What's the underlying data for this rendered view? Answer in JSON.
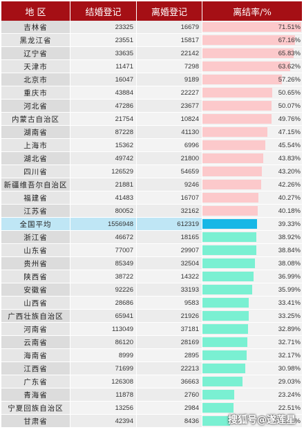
{
  "headers": {
    "region": "地  区",
    "marriage": "结婚登记",
    "divorce": "离婚登记",
    "ratio": "离结率/%"
  },
  "rows": [
    {
      "region": "吉林省",
      "marriage": "23325",
      "divorce": "16679",
      "ratio": "71.51%",
      "value": 71.51
    },
    {
      "region": "黑龙江省",
      "marriage": "23551",
      "divorce": "15817",
      "ratio": "67.16%",
      "value": 67.16
    },
    {
      "region": "辽宁省",
      "marriage": "33635",
      "divorce": "22142",
      "ratio": "65.83%",
      "value": 65.83
    },
    {
      "region": "天津市",
      "marriage": "11471",
      "divorce": "7298",
      "ratio": "63.62%",
      "value": 63.62
    },
    {
      "region": "北京市",
      "marriage": "16047",
      "divorce": "9189",
      "ratio": "57.26%",
      "value": 57.26
    },
    {
      "region": "重庆市",
      "marriage": "43884",
      "divorce": "22227",
      "ratio": "50.65%",
      "value": 50.65
    },
    {
      "region": "河北省",
      "marriage": "47286",
      "divorce": "23677",
      "ratio": "50.07%",
      "value": 50.07
    },
    {
      "region": "内蒙古自治区",
      "marriage": "21754",
      "divorce": "10824",
      "ratio": "49.76%",
      "value": 49.76
    },
    {
      "region": "湖南省",
      "marriage": "87228",
      "divorce": "41130",
      "ratio": "47.15%",
      "value": 47.15
    },
    {
      "region": "上海市",
      "marriage": "15362",
      "divorce": "6996",
      "ratio": "45.54%",
      "value": 45.54
    },
    {
      "region": "湖北省",
      "marriage": "49742",
      "divorce": "21800",
      "ratio": "43.83%",
      "value": 43.83
    },
    {
      "region": "四川省",
      "marriage": "126529",
      "divorce": "54659",
      "ratio": "43.20%",
      "value": 43.2
    },
    {
      "region": "新疆维吾尔自治区",
      "marriage": "21881",
      "divorce": "9246",
      "ratio": "42.26%",
      "value": 42.26
    },
    {
      "region": "福建省",
      "marriage": "41483",
      "divorce": "16707",
      "ratio": "40.27%",
      "value": 40.27
    },
    {
      "region": "江苏省",
      "marriage": "80052",
      "divorce": "32162",
      "ratio": "40.18%",
      "value": 40.18
    },
    {
      "region": "全国平均",
      "marriage": "1556948",
      "divorce": "612319",
      "ratio": "39.33%",
      "value": 39.33,
      "avg": true
    },
    {
      "region": "浙江省",
      "marriage": "46672",
      "divorce": "18165",
      "ratio": "38.92%",
      "value": 38.92
    },
    {
      "region": "山东省",
      "marriage": "77007",
      "divorce": "29907",
      "ratio": "38.84%",
      "value": 38.84
    },
    {
      "region": "贵州省",
      "marriage": "85349",
      "divorce": "32504",
      "ratio": "38.08%",
      "value": 38.08
    },
    {
      "region": "陕西省",
      "marriage": "38722",
      "divorce": "14322",
      "ratio": "36.99%",
      "value": 36.99
    },
    {
      "region": "安徽省",
      "marriage": "92226",
      "divorce": "33193",
      "ratio": "35.99%",
      "value": 35.99
    },
    {
      "region": "山西省",
      "marriage": "28686",
      "divorce": "9583",
      "ratio": "33.41%",
      "value": 33.41
    },
    {
      "region": "广西壮族自治区",
      "marriage": "65941",
      "divorce": "21926",
      "ratio": "33.25%",
      "value": 33.25
    },
    {
      "region": "河南省",
      "marriage": "113049",
      "divorce": "37181",
      "ratio": "32.89%",
      "value": 32.89
    },
    {
      "region": "云南省",
      "marriage": "86120",
      "divorce": "28169",
      "ratio": "32.71%",
      "value": 32.71
    },
    {
      "region": "海南省",
      "marriage": "8999",
      "divorce": "2895",
      "ratio": "32.17%",
      "value": 32.17
    },
    {
      "region": "江西省",
      "marriage": "71699",
      "divorce": "22213",
      "ratio": "30.98%",
      "value": 30.98
    },
    {
      "region": "广东省",
      "marriage": "126308",
      "divorce": "36663",
      "ratio": "29.03%",
      "value": 29.03
    },
    {
      "region": "青海省",
      "marriage": "11878",
      "divorce": "2760",
      "ratio": "23.24%",
      "value": 23.24
    },
    {
      "region": "宁夏回族自治区",
      "marriage": "13256",
      "divorce": "2984",
      "ratio": "22.51%",
      "value": 22.51
    },
    {
      "region": "甘肃省",
      "marriage": "42394",
      "divorce": "8436",
      "ratio": "19.90%",
      "value": 19.9
    }
  ],
  "bar_max": 72,
  "colors": {
    "header": "#a50f15",
    "bar_high": "#fcc9cb",
    "bar_low": "#7af0d2",
    "bar_avg": "#17b7e6"
  },
  "watermark": "搜狐号@遂莲星"
}
